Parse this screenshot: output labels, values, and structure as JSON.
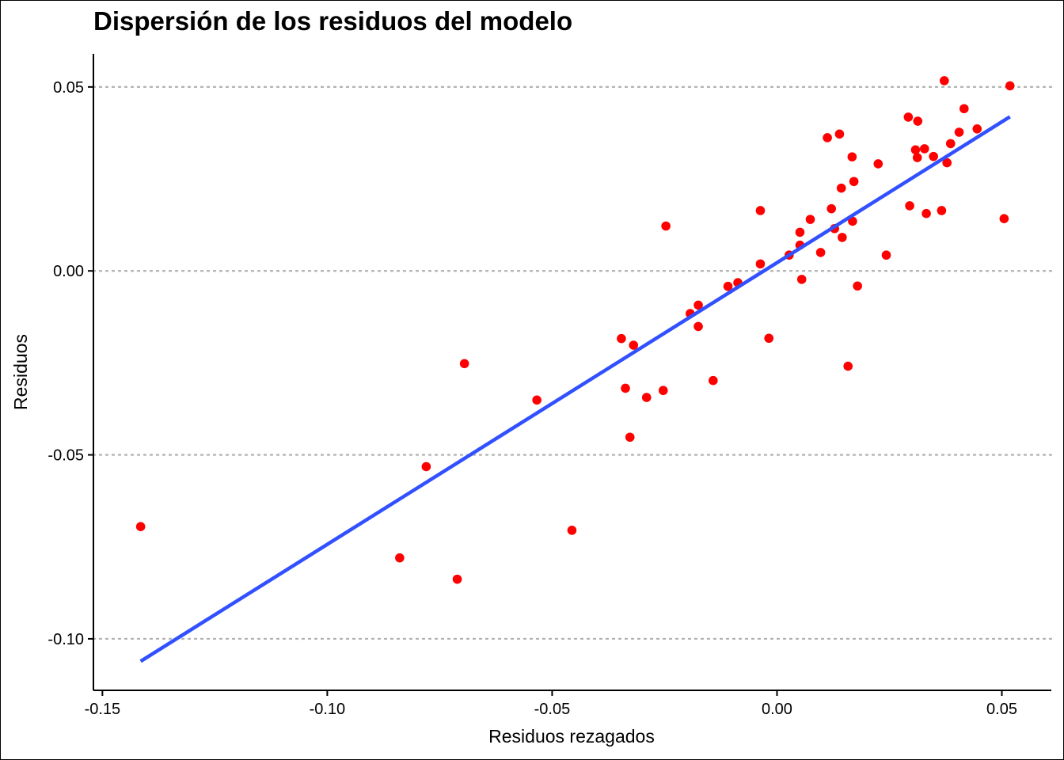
{
  "chart_data": {
    "type": "scatter",
    "title": "Dispersión de los residuos del modelo",
    "xlabel": "Residuos rezagados",
    "ylabel": "Residuos",
    "xlim": [
      -0.152,
      0.061
    ],
    "ylim": [
      -0.114,
      0.059
    ],
    "xticks": [
      -0.15,
      -0.1,
      -0.05,
      0.0,
      0.05
    ],
    "xtick_labels": [
      "-0.15",
      "-0.10",
      "-0.05",
      "0.00",
      "0.05"
    ],
    "yticks": [
      -0.1,
      -0.05,
      0.0,
      0.05
    ],
    "ytick_labels": [
      "-0.10",
      "-0.05",
      "0.00",
      "0.05"
    ],
    "grid": "horizontal dotted at y ticks",
    "point_color": "#ff0000",
    "line_color": "#3150ff",
    "points": [
      [
        -0.1415,
        -0.0695
      ],
      [
        -0.0839,
        -0.078
      ],
      [
        -0.078,
        -0.0532
      ],
      [
        -0.0711,
        -0.0838
      ],
      [
        -0.0695,
        -0.0252
      ],
      [
        -0.0534,
        -0.0351
      ],
      [
        -0.0456,
        -0.0705
      ],
      [
        -0.0346,
        -0.0184
      ],
      [
        -0.0337,
        -0.0319
      ],
      [
        -0.0319,
        -0.0202
      ],
      [
        -0.0327,
        -0.0452
      ],
      [
        -0.029,
        -0.0344
      ],
      [
        -0.0253,
        -0.0325
      ],
      [
        -0.0247,
        0.0122
      ],
      [
        -0.0193,
        -0.0116
      ],
      [
        -0.0175,
        -0.0093
      ],
      [
        -0.0175,
        -0.0151
      ],
      [
        -0.0142,
        -0.0298
      ],
      [
        -0.0109,
        -0.0042
      ],
      [
        -0.0087,
        -0.0032
      ],
      [
        -0.0037,
        0.0164
      ],
      [
        -0.0037,
        0.0019
      ],
      [
        -0.0018,
        -0.0183
      ],
      [
        0.0027,
        0.0043
      ],
      [
        0.0051,
        0.0105
      ],
      [
        0.0051,
        0.007
      ],
      [
        0.0055,
        -0.0023
      ],
      [
        0.0074,
        0.014
      ],
      [
        0.0097,
        0.005
      ],
      [
        0.0112,
        0.0362
      ],
      [
        0.0121,
        0.0169
      ],
      [
        0.0128,
        0.0115
      ],
      [
        0.0139,
        0.0372
      ],
      [
        0.0143,
        0.0225
      ],
      [
        0.0145,
        0.0091
      ],
      [
        0.0158,
        -0.0259
      ],
      [
        0.0167,
        0.031
      ],
      [
        0.0168,
        0.0135
      ],
      [
        0.0171,
        0.0243
      ],
      [
        0.0179,
        -0.0041
      ],
      [
        0.0225,
        0.0291
      ],
      [
        0.0243,
        0.0043
      ],
      [
        0.0292,
        0.0418
      ],
      [
        0.0295,
        0.0177
      ],
      [
        0.0308,
        0.0329
      ],
      [
        0.0313,
        0.0407
      ],
      [
        0.0312,
        0.0308
      ],
      [
        0.0328,
        0.0332
      ],
      [
        0.0332,
        0.0156
      ],
      [
        0.0348,
        0.0311
      ],
      [
        0.0366,
        0.0164
      ],
      [
        0.0372,
        0.0517
      ],
      [
        0.0378,
        0.0294
      ],
      [
        0.0386,
        0.0346
      ],
      [
        0.0405,
        0.0377
      ],
      [
        0.0416,
        0.0441
      ],
      [
        0.0445,
        0.0386
      ],
      [
        0.0505,
        0.0142
      ],
      [
        0.0518,
        0.0503
      ]
    ],
    "fit_line": {
      "x": [
        -0.1415,
        0.0518
      ],
      "y": [
        -0.1061,
        0.0419
      ]
    }
  }
}
